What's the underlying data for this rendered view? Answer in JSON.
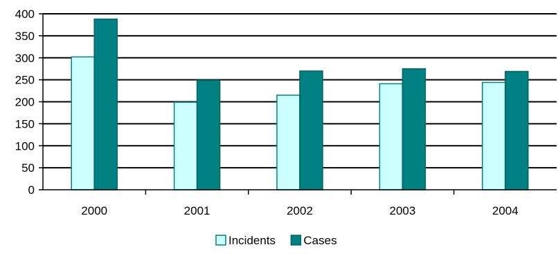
{
  "chart_data": {
    "type": "bar",
    "categories": [
      "2000",
      "2001",
      "2002",
      "2003",
      "2004"
    ],
    "series": [
      {
        "name": "Incidents",
        "values": [
          302,
          199,
          215,
          241,
          244
        ],
        "color": "#ccffff",
        "stroke": "#008080"
      },
      {
        "name": "Cases",
        "values": [
          388,
          249,
          270,
          275,
          269
        ],
        "color": "#008080",
        "stroke": "#006666"
      }
    ],
    "ylim": [
      0,
      400
    ],
    "yticks": [
      "0",
      "50",
      "100",
      "150",
      "200",
      "250",
      "300",
      "350",
      "400"
    ],
    "grid": true,
    "legend_position": "bottom"
  }
}
